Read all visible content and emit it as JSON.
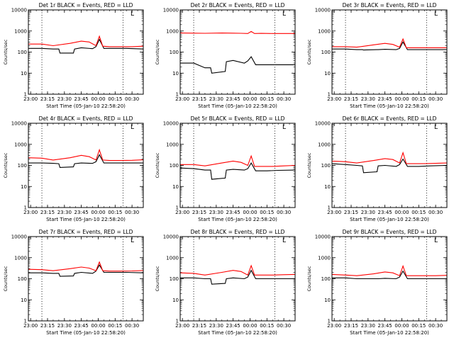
{
  "chart_data": [
    {
      "type": "line",
      "title": "Det 1r BLACK = Events, RED = LLD",
      "xlabel": "Start Time (05-Jan-10 22:58:20)",
      "ylabel": "Counts/sec",
      "y_scale": "log",
      "ylim": [
        1,
        10000
      ],
      "y_tick_labels": [
        "1",
        "10",
        "100",
        "1000",
        "10000"
      ],
      "xlim": [
        "22:58",
        "00:40"
      ],
      "x_tick_labels": [
        "23:00",
        "23:15",
        "23:30",
        "23:45",
        "00:00",
        "00:15",
        "00:30"
      ],
      "vertical_markers": [
        "23:10",
        "00:22"
      ],
      "legend_placement": "top-right",
      "legend_glyph": "L",
      "grid": false,
      "series": [
        {
          "name": "Events",
          "color": "#000000",
          "x": [
            "22:58",
            "23:10",
            "23:20",
            "23:25",
            "23:26",
            "23:38",
            "23:39",
            "23:45",
            "23:55",
            "23:58",
            "00:01",
            "00:05",
            "00:10",
            "00:15",
            "00:25",
            "00:40"
          ],
          "y": [
            150,
            150,
            140,
            140,
            90,
            90,
            140,
            160,
            145,
            180,
            400,
            150,
            150,
            150,
            150,
            140
          ]
        },
        {
          "name": "LLD",
          "color": "#ff0000",
          "x": [
            "22:58",
            "23:10",
            "23:20",
            "23:35",
            "23:45",
            "23:52",
            "23:58",
            "00:01",
            "00:04",
            "00:10",
            "00:20",
            "00:30",
            "00:40"
          ],
          "y": [
            240,
            240,
            200,
            260,
            330,
            300,
            200,
            560,
            190,
            180,
            180,
            180,
            190
          ]
        }
      ]
    },
    {
      "type": "line",
      "title": "Det 2r BLACK = Events, RED = LLD",
      "xlabel": "Start Time (05-Jan-10 22:58:20)",
      "ylabel": "Counts/sec",
      "y_scale": "log",
      "ylim": [
        1,
        10000
      ],
      "y_tick_labels": [
        "1",
        "10",
        "100",
        "1000",
        "10000"
      ],
      "xlim": [
        "22:58",
        "00:40"
      ],
      "x_tick_labels": [
        "23:00",
        "23:15",
        "23:30",
        "23:45",
        "00:00",
        "00:15",
        "00:30"
      ],
      "vertical_markers": [
        "23:10",
        "00:22"
      ],
      "legend_placement": "top-right",
      "legend_glyph": "L",
      "grid": false,
      "series": [
        {
          "name": "Events",
          "color": "#000000",
          "x": [
            "22:58",
            "23:10",
            "23:20",
            "23:25",
            "23:26",
            "23:38",
            "23:39",
            "23:45",
            "23:55",
            "23:58",
            "00:01",
            "00:05",
            "00:10",
            "00:15",
            "00:25",
            "00:40"
          ],
          "y": [
            30,
            30,
            18,
            18,
            10,
            12,
            35,
            40,
            30,
            38,
            60,
            25,
            25,
            25,
            25,
            25
          ]
        },
        {
          "name": "LLD",
          "color": "#ff0000",
          "x": [
            "22:58",
            "23:10",
            "23:20",
            "23:35",
            "23:45",
            "23:52",
            "23:58",
            "00:01",
            "00:04",
            "00:10",
            "00:20",
            "00:30",
            "00:40"
          ],
          "y": [
            800,
            790,
            780,
            800,
            790,
            780,
            760,
            950,
            760,
            770,
            760,
            760,
            760
          ]
        }
      ]
    },
    {
      "type": "line",
      "title": "Det 3r BLACK = Events, RED = LLD",
      "xlabel": "Start Time (05-Jan-10 22:58:20)",
      "ylabel": "Counts/sec",
      "y_scale": "log",
      "ylim": [
        1,
        10000
      ],
      "y_tick_labels": [
        "1",
        "10",
        "100",
        "1000",
        "10000"
      ],
      "xlim": [
        "22:58",
        "00:40"
      ],
      "x_tick_labels": [
        "23:00",
        "23:15",
        "23:30",
        "23:45",
        "00:00",
        "00:15",
        "00:30"
      ],
      "vertical_markers": [
        "23:10",
        "00:22"
      ],
      "legend_placement": "top-right",
      "legend_glyph": "L",
      "grid": false,
      "series": [
        {
          "name": "Events",
          "color": "#000000",
          "x": [
            "22:58",
            "23:10",
            "23:20",
            "23:25",
            "23:26",
            "23:38",
            "23:39",
            "23:45",
            "23:55",
            "23:58",
            "00:01",
            "00:05",
            "00:10",
            "00:15",
            "00:25",
            "00:40"
          ],
          "y": [
            140,
            140,
            130,
            130,
            125,
            130,
            130,
            135,
            130,
            150,
            300,
            130,
            130,
            130,
            130,
            130
          ]
        },
        {
          "name": "LLD",
          "color": "#ff0000",
          "x": [
            "22:58",
            "23:10",
            "23:20",
            "23:35",
            "23:45",
            "23:52",
            "23:58",
            "00:01",
            "00:04",
            "00:10",
            "00:20",
            "00:30",
            "00:40"
          ],
          "y": [
            180,
            180,
            170,
            220,
            260,
            230,
            170,
            420,
            160,
            160,
            160,
            160,
            160
          ]
        }
      ]
    },
    {
      "type": "line",
      "title": "Det 4r BLACK = Events, RED = LLD",
      "xlabel": "Start Time (05-Jan-10 22:58:20)",
      "ylabel": "Counts/sec",
      "y_scale": "log",
      "ylim": [
        1,
        10000
      ],
      "y_tick_labels": [
        "1",
        "10",
        "100",
        "1000",
        "10000"
      ],
      "xlim": [
        "22:58",
        "00:40"
      ],
      "x_tick_labels": [
        "23:00",
        "23:15",
        "23:30",
        "23:45",
        "00:00",
        "00:15",
        "00:30"
      ],
      "vertical_markers": [
        "23:10",
        "00:22"
      ],
      "legend_placement": "top-right",
      "legend_glyph": "L",
      "grid": false,
      "series": [
        {
          "name": "Events",
          "color": "#000000",
          "x": [
            "22:58",
            "23:10",
            "23:20",
            "23:25",
            "23:26",
            "23:38",
            "23:39",
            "23:45",
            "23:55",
            "23:58",
            "00:01",
            "00:05",
            "00:10",
            "00:15",
            "00:25",
            "00:40"
          ],
          "y": [
            130,
            130,
            125,
            120,
            80,
            85,
            120,
            130,
            125,
            150,
            320,
            130,
            130,
            130,
            130,
            130
          ]
        },
        {
          "name": "LLD",
          "color": "#ff0000",
          "x": [
            "22:58",
            "23:10",
            "23:20",
            "23:35",
            "23:45",
            "23:52",
            "23:58",
            "00:01",
            "00:04",
            "00:10",
            "00:20",
            "00:30",
            "00:40"
          ],
          "y": [
            230,
            220,
            180,
            230,
            300,
            260,
            180,
            550,
            180,
            170,
            170,
            175,
            185
          ]
        }
      ]
    },
    {
      "type": "line",
      "title": "Det 5r BLACK = Events, RED = LLD",
      "xlabel": "Start Time (05-Jan-10 22:58:20)",
      "ylabel": "Counts/sec",
      "y_scale": "log",
      "ylim": [
        1,
        10000
      ],
      "y_tick_labels": [
        "1",
        "10",
        "100",
        "1000",
        "10000"
      ],
      "xlim": [
        "22:58",
        "00:40"
      ],
      "x_tick_labels": [
        "23:00",
        "23:15",
        "23:30",
        "23:45",
        "00:00",
        "00:15",
        "00:30"
      ],
      "vertical_markers": [
        "23:10",
        "00:22"
      ],
      "legend_placement": "top-right",
      "legend_glyph": "L",
      "grid": false,
      "series": [
        {
          "name": "Events",
          "color": "#000000",
          "x": [
            "22:58",
            "23:10",
            "23:20",
            "23:25",
            "23:26",
            "23:38",
            "23:39",
            "23:45",
            "23:55",
            "23:58",
            "00:01",
            "00:05",
            "00:10",
            "00:15",
            "00:25",
            "00:40"
          ],
          "y": [
            75,
            70,
            60,
            60,
            22,
            25,
            60,
            65,
            60,
            70,
            130,
            55,
            55,
            55,
            58,
            60
          ]
        },
        {
          "name": "LLD",
          "color": "#ff0000",
          "x": [
            "22:58",
            "23:10",
            "23:20",
            "23:35",
            "23:45",
            "23:52",
            "23:58",
            "00:01",
            "00:04",
            "00:10",
            "00:20",
            "00:30",
            "00:40"
          ],
          "y": [
            110,
            110,
            95,
            130,
            160,
            140,
            100,
            280,
            90,
            90,
            90,
            95,
            100
          ]
        }
      ]
    },
    {
      "type": "line",
      "title": "Det 6r BLACK = Events, RED = LLD",
      "xlabel": "Start Time (05-Jan-10 22:58:20)",
      "ylabel": "Counts/sec",
      "y_scale": "log",
      "ylim": [
        1,
        10000
      ],
      "y_tick_labels": [
        "1",
        "10",
        "100",
        "1000",
        "10000"
      ],
      "xlim": [
        "22:58",
        "00:40"
      ],
      "x_tick_labels": [
        "23:00",
        "23:15",
        "23:30",
        "23:45",
        "00:00",
        "00:15",
        "00:30"
      ],
      "vertical_markers": [
        "23:10",
        "00:22"
      ],
      "legend_placement": "top-right",
      "legend_glyph": "L",
      "grid": false,
      "series": [
        {
          "name": "Events",
          "color": "#000000",
          "x": [
            "22:58",
            "23:10",
            "23:20",
            "23:25",
            "23:26",
            "23:38",
            "23:39",
            "23:45",
            "23:55",
            "23:58",
            "00:01",
            "00:05",
            "00:10",
            "00:15",
            "00:25",
            "00:40"
          ],
          "y": [
            120,
            110,
            100,
            95,
            45,
            50,
            95,
            100,
            90,
            110,
            200,
            90,
            90,
            90,
            95,
            100
          ]
        },
        {
          "name": "LLD",
          "color": "#ff0000",
          "x": [
            "22:58",
            "23:10",
            "23:20",
            "23:35",
            "23:45",
            "23:52",
            "23:58",
            "00:01",
            "00:04",
            "00:10",
            "00:20",
            "00:30",
            "00:40"
          ],
          "y": [
            160,
            150,
            130,
            170,
            210,
            190,
            130,
            400,
            120,
            120,
            120,
            125,
            130
          ]
        }
      ]
    },
    {
      "type": "line",
      "title": "Det 7r BLACK = Events, RED = LLD",
      "xlabel": "Start Time (05-Jan-10 22:58:20)",
      "ylabel": "Counts/sec",
      "y_scale": "log",
      "ylim": [
        1,
        10000
      ],
      "y_tick_labels": [
        "1",
        "10",
        "100",
        "1000",
        "10000"
      ],
      "xlim": [
        "22:58",
        "00:40"
      ],
      "x_tick_labels": [
        "23:00",
        "23:15",
        "23:30",
        "23:45",
        "00:00",
        "00:15",
        "00:30"
      ],
      "vertical_markers": [
        "23:10",
        "00:22"
      ],
      "legend_placement": "top-right",
      "legend_glyph": "L",
      "grid": false,
      "series": [
        {
          "name": "Events",
          "color": "#000000",
          "x": [
            "22:58",
            "23:10",
            "23:20",
            "23:25",
            "23:26",
            "23:38",
            "23:39",
            "23:45",
            "23:55",
            "23:58",
            "00:01",
            "00:05",
            "00:10",
            "00:15",
            "00:25",
            "00:40"
          ],
          "y": [
            190,
            190,
            180,
            180,
            130,
            135,
            180,
            200,
            180,
            230,
            450,
            200,
            200,
            200,
            200,
            190
          ]
        },
        {
          "name": "LLD",
          "color": "#ff0000",
          "x": [
            "22:58",
            "23:10",
            "23:20",
            "23:35",
            "23:45",
            "23:52",
            "23:58",
            "00:01",
            "00:04",
            "00:10",
            "00:20",
            "00:30",
            "00:40"
          ],
          "y": [
            280,
            270,
            240,
            300,
            360,
            320,
            240,
            620,
            240,
            230,
            230,
            235,
            245
          ]
        }
      ]
    },
    {
      "type": "line",
      "title": "Det 8r BLACK = Events, RED = LLD",
      "xlabel": "Start Time (05-Jan-10 22:58:20)",
      "ylabel": "Counts/sec",
      "y_scale": "log",
      "ylim": [
        1,
        10000
      ],
      "y_tick_labels": [
        "1",
        "10",
        "100",
        "1000",
        "10000"
      ],
      "xlim": [
        "22:58",
        "00:40"
      ],
      "x_tick_labels": [
        "23:00",
        "23:15",
        "23:30",
        "23:45",
        "00:00",
        "00:15",
        "00:30"
      ],
      "vertical_markers": [
        "23:10",
        "00:22"
      ],
      "legend_placement": "top-right",
      "legend_glyph": "L",
      "grid": false,
      "series": [
        {
          "name": "Events",
          "color": "#000000",
          "x": [
            "22:58",
            "23:10",
            "23:20",
            "23:25",
            "23:26",
            "23:38",
            "23:39",
            "23:45",
            "23:55",
            "23:58",
            "00:01",
            "00:05",
            "00:10",
            "00:15",
            "00:25",
            "00:40"
          ],
          "y": [
            110,
            110,
            100,
            100,
            55,
            60,
            100,
            110,
            100,
            120,
            250,
            100,
            100,
            100,
            100,
            100
          ]
        },
        {
          "name": "LLD",
          "color": "#ff0000",
          "x": [
            "22:58",
            "23:10",
            "23:20",
            "23:35",
            "23:45",
            "23:52",
            "23:58",
            "00:01",
            "00:04",
            "00:10",
            "00:20",
            "00:30",
            "00:40"
          ],
          "y": [
            190,
            180,
            150,
            200,
            250,
            220,
            150,
            420,
            150,
            150,
            150,
            155,
            160
          ]
        }
      ]
    },
    {
      "type": "line",
      "title": "Det 9r BLACK = Events, RED = LLD",
      "xlabel": "Start Time (05-Jan-10 22:58:20)",
      "ylabel": "Counts/sec",
      "y_scale": "log",
      "ylim": [
        1,
        10000
      ],
      "y_tick_labels": [
        "1",
        "10",
        "100",
        "1000",
        "10000"
      ],
      "xlim": [
        "22:58",
        "00:40"
      ],
      "x_tick_labels": [
        "23:00",
        "23:15",
        "23:30",
        "23:45",
        "00:00",
        "00:15",
        "00:30"
      ],
      "vertical_markers": [
        "23:10",
        "00:22"
      ],
      "legend_placement": "top-right",
      "legend_glyph": "L",
      "grid": false,
      "series": [
        {
          "name": "Events",
          "color": "#000000",
          "x": [
            "22:58",
            "23:10",
            "23:20",
            "23:25",
            "23:26",
            "23:38",
            "23:39",
            "23:45",
            "23:55",
            "23:58",
            "00:01",
            "00:05",
            "00:10",
            "00:15",
            "00:25",
            "00:40"
          ],
          "y": [
            110,
            110,
            100,
            100,
            100,
            100,
            100,
            105,
            100,
            120,
            230,
            100,
            100,
            100,
            100,
            100
          ]
        },
        {
          "name": "LLD",
          "color": "#ff0000",
          "x": [
            "22:58",
            "23:10",
            "23:20",
            "23:35",
            "23:45",
            "23:52",
            "23:58",
            "00:01",
            "00:04",
            "00:10",
            "00:20",
            "00:30",
            "00:40"
          ],
          "y": [
            160,
            150,
            140,
            170,
            210,
            190,
            140,
            400,
            140,
            140,
            140,
            140,
            145
          ]
        }
      ]
    }
  ]
}
